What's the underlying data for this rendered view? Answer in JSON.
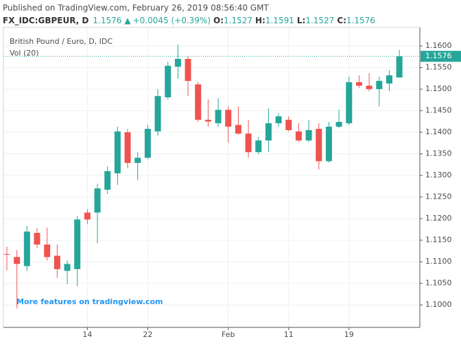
{
  "header": {
    "published": "Published on TradingView.com, February 26, 2019 08:56:40 GMT",
    "symbol": "FX_IDC:GBPEUR, D",
    "price": "1.1576",
    "change": "+0.0045 (+0.39%)",
    "o_label": "O:",
    "o_value": "1.1527",
    "h_label": "H:",
    "h_value": "1.1591",
    "l_label": "L:",
    "l_value": "1.1527",
    "c_label": "C:",
    "c_value": "1.1576"
  },
  "chart_data": {
    "type": "candlestick",
    "legend_title": "British Pound / Euro, D, IDC",
    "volume_label": "Vol (20)",
    "watermark": "More features on tradingview.com",
    "last_price_label": "1.1576",
    "up_color": "#26a69a",
    "down_color": "#ef5350",
    "grid": true,
    "categories": [
      null,
      null,
      null,
      null,
      null,
      null,
      null,
      null,
      "14",
      null,
      null,
      null,
      null,
      null,
      "22",
      null,
      null,
      null,
      null,
      null,
      null,
      null,
      "Feb",
      null,
      null,
      null,
      null,
      null,
      "11",
      null,
      null,
      null,
      null,
      null,
      "19",
      null,
      null,
      null,
      null,
      null
    ],
    "open": [
      1.1118,
      1.1111,
      1.109,
      1.1167,
      1.114,
      1.1114,
      1.1079,
      1.1083,
      1.1214,
      1.1214,
      1.1267,
      1.1305,
      1.14,
      1.1329,
      1.1341,
      1.1402,
      1.1481,
      1.1552,
      1.157,
      1.1511,
      1.1429,
      1.1421,
      1.1452,
      1.1417,
      1.1397,
      1.1354,
      1.1381,
      1.1421,
      1.1429,
      1.1402,
      1.1381,
      1.1408,
      1.1333,
      1.1413,
      1.1421,
      1.1516,
      1.1508,
      1.15,
      1.1513,
      1.1527
    ],
    "high": [
      1.1135,
      1.1127,
      1.1183,
      1.1178,
      1.1179,
      1.114,
      1.1103,
      1.1206,
      1.1222,
      1.1281,
      1.1321,
      1.1413,
      1.1408,
      1.1354,
      1.1417,
      1.15,
      1.1563,
      1.1603,
      1.1576,
      1.1516,
      1.1476,
      1.1479,
      1.146,
      1.146,
      1.1429,
      1.1389,
      1.1456,
      1.1444,
      1.1437,
      1.1421,
      1.1429,
      1.1421,
      1.1424,
      1.1452,
      1.1529,
      1.1532,
      1.1537,
      1.1529,
      1.1544,
      1.1591
    ],
    "low": [
      1.108,
      1.0992,
      1.1079,
      1.1132,
      1.1103,
      1.1063,
      1.1048,
      1.1043,
      1.1187,
      1.1143,
      1.1257,
      1.1278,
      1.1317,
      1.1289,
      1.1338,
      1.1392,
      1.1476,
      1.1524,
      1.1484,
      1.1424,
      1.1413,
      1.1413,
      1.1376,
      1.1394,
      1.1341,
      1.1349,
      1.1354,
      1.1413,
      1.1402,
      1.1378,
      1.1378,
      1.1314,
      1.133,
      1.141,
      1.1417,
      1.1503,
      1.1495,
      1.146,
      1.1495,
      1.1527
    ],
    "close": [
      1.1117,
      1.1095,
      1.117,
      1.114,
      1.1111,
      1.1083,
      1.1095,
      1.1198,
      1.1198,
      1.127,
      1.131,
      1.1402,
      1.1329,
      1.1341,
      1.1408,
      1.1484,
      1.1554,
      1.157,
      1.1519,
      1.1429,
      1.1425,
      1.1452,
      1.1413,
      1.1397,
      1.1354,
      1.1381,
      1.1421,
      1.1437,
      1.1405,
      1.1381,
      1.1405,
      1.1333,
      1.1413,
      1.1424,
      1.1516,
      1.1508,
      1.15,
      1.1519,
      1.1532,
      1.1576
    ],
    "ylim": [
      1.0948,
      1.1643
    ],
    "yticks": [
      {
        "value": 1.1,
        "label": "1.1000"
      },
      {
        "value": 1.105,
        "label": "1.1050"
      },
      {
        "value": 1.11,
        "label": "1.1100"
      },
      {
        "value": 1.115,
        "label": "1.1150"
      },
      {
        "value": 1.12,
        "label": "1.1200"
      },
      {
        "value": 1.125,
        "label": "1.1250"
      },
      {
        "value": 1.13,
        "label": "1.1300"
      },
      {
        "value": 1.135,
        "label": "1.1350"
      },
      {
        "value": 1.14,
        "label": "1.1400"
      },
      {
        "value": 1.145,
        "label": "1.1450"
      },
      {
        "value": 1.15,
        "label": "1.1500"
      },
      {
        "value": 1.155,
        "label": "1.1550"
      },
      {
        "value": 1.16,
        "label": "1.1600"
      }
    ]
  }
}
